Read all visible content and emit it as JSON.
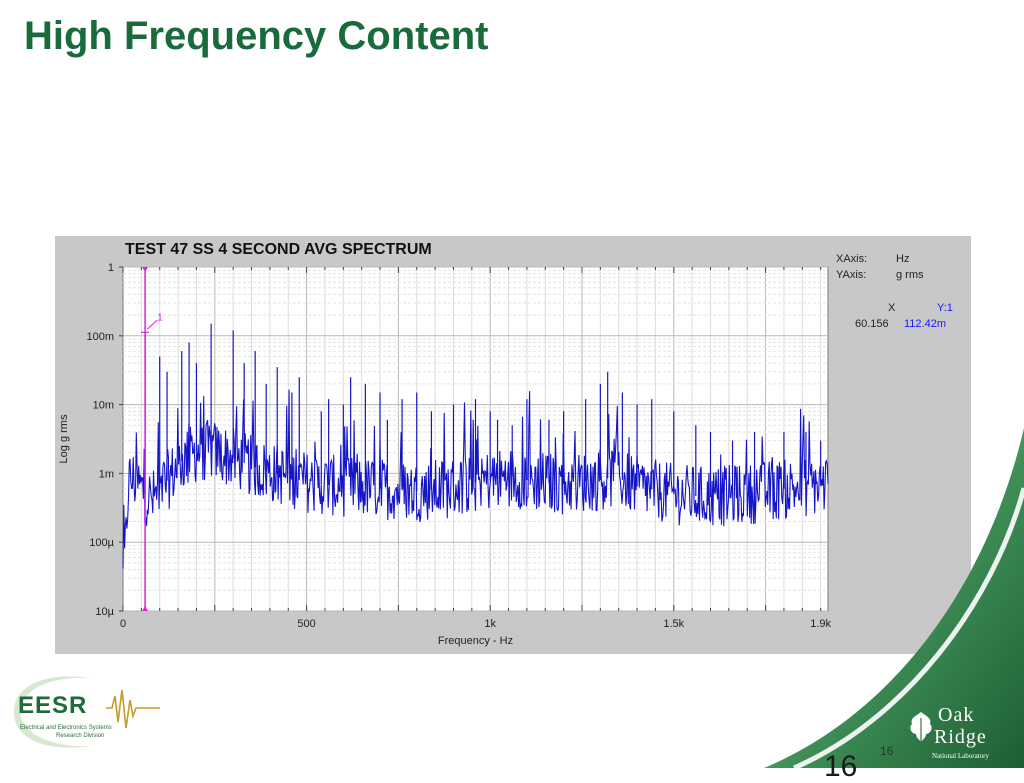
{
  "slide": {
    "title": "High Frequency Content",
    "page_number": "16",
    "page_number_overlay": "16"
  },
  "logos": {
    "eesr": {
      "name": "EESR",
      "line1": "Electrical and Electronics Systems",
      "line2": "Research Division"
    },
    "ornl": {
      "word1": "Oak",
      "word2": "Ridge",
      "subtitle": "National Laboratory"
    }
  },
  "readout": {
    "xaxis_label": "XAxis:",
    "xaxis_unit": "Hz",
    "yaxis_label": "YAxis:",
    "yaxis_unit": "g rms",
    "x_header": "X",
    "y_header": "Y:1",
    "x_value": "60.156",
    "y_value": "112.42m"
  },
  "colors": {
    "title": "#1a6b3c",
    "trace": "#1515c8",
    "cursor": "#e020e0",
    "panel": "#c8c8c8"
  },
  "chart_data": {
    "type": "line",
    "title": "TEST 47 SS 4 SECOND AVG SPECTRUM",
    "xlabel": "Frequency - Hz",
    "ylabel": "Log g rms",
    "y_scale": "log",
    "xlim": [
      0,
      1920
    ],
    "ylim": [
      1e-05,
      1
    ],
    "x_ticks": [
      0,
      500,
      1000,
      1500,
      1900
    ],
    "x_tick_labels": [
      "0",
      "500",
      "1k",
      "1.5k",
      "1.9k"
    ],
    "y_ticks": [
      1,
      0.1,
      0.01,
      0.001,
      0.0001,
      1e-05
    ],
    "y_tick_labels": [
      "1",
      "100m",
      "10m",
      "1m",
      "100µ",
      "10µ"
    ],
    "grid": true,
    "cursor": {
      "label": "1",
      "x": 60.156,
      "y": 0.11242
    },
    "series": [
      {
        "baseline": [
          [
            0,
            3e-05
          ],
          [
            8,
            0.0001
          ],
          [
            15,
            0.0008
          ],
          [
            30,
            0.0008
          ],
          [
            50,
            0.0006
          ],
          [
            60,
            0.0005
          ],
          [
            80,
            0.0004
          ],
          [
            100,
            0.0006
          ],
          [
            130,
            0.0009
          ],
          [
            160,
            0.0015
          ],
          [
            200,
            0.002
          ],
          [
            240,
            0.0022
          ],
          [
            280,
            0.0018
          ],
          [
            320,
            0.0015
          ],
          [
            380,
            0.0011
          ],
          [
            450,
            0.0009
          ],
          [
            520,
            0.0007
          ],
          [
            600,
            0.00065
          ],
          [
            700,
            0.0006
          ],
          [
            800,
            0.00055
          ],
          [
            880,
            0.0006
          ],
          [
            940,
            0.0007
          ],
          [
            1000,
            0.0008
          ],
          [
            1060,
            0.0009
          ],
          [
            1100,
            0.0008
          ],
          [
            1200,
            0.0007
          ],
          [
            1300,
            0.0008
          ],
          [
            1340,
            0.0009
          ],
          [
            1400,
            0.00065
          ],
          [
            1500,
            0.0005
          ],
          [
            1600,
            0.00045
          ],
          [
            1700,
            0.0005
          ],
          [
            1800,
            0.0006
          ],
          [
            1920,
            0.0007
          ]
        ],
        "peaks": [
          [
            60.156,
            0.11242
          ],
          [
            100,
            0.05
          ],
          [
            120,
            0.03
          ],
          [
            160,
            0.06
          ],
          [
            180,
            0.08
          ],
          [
            200,
            0.04
          ],
          [
            240,
            0.15
          ],
          [
            300,
            0.12
          ],
          [
            330,
            0.04
          ],
          [
            360,
            0.06
          ],
          [
            390,
            0.02
          ],
          [
            420,
            0.035
          ],
          [
            460,
            0.015
          ],
          [
            480,
            0.025
          ],
          [
            540,
            0.008
          ],
          [
            560,
            0.012
          ],
          [
            600,
            0.01
          ],
          [
            620,
            0.025
          ],
          [
            660,
            0.02
          ],
          [
            700,
            0.015
          ],
          [
            720,
            0.006
          ],
          [
            760,
            0.012
          ],
          [
            800,
            0.015
          ],
          [
            840,
            0.008
          ],
          [
            900,
            0.01
          ],
          [
            960,
            0.012
          ],
          [
            1000,
            0.008
          ],
          [
            1020,
            0.006
          ],
          [
            1060,
            0.005
          ],
          [
            1100,
            0.012
          ],
          [
            1160,
            0.006
          ],
          [
            1200,
            0.008
          ],
          [
            1260,
            0.012
          ],
          [
            1300,
            0.02
          ],
          [
            1320,
            0.03
          ],
          [
            1360,
            0.015
          ],
          [
            1400,
            0.01
          ],
          [
            1440,
            0.012
          ],
          [
            1500,
            0.008
          ],
          [
            1560,
            0.005
          ],
          [
            1600,
            0.004
          ],
          [
            1660,
            0.003
          ],
          [
            1720,
            0.004
          ],
          [
            1800,
            0.004
          ],
          [
            1860,
            0.004
          ],
          [
            1900,
            0.003
          ]
        ]
      }
    ]
  }
}
